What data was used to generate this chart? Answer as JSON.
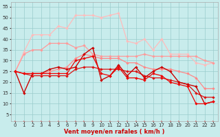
{
  "x": [
    0,
    1,
    2,
    3,
    4,
    5,
    6,
    7,
    8,
    9,
    10,
    11,
    12,
    13,
    14,
    15,
    16,
    17,
    18,
    19,
    20,
    21,
    22,
    23
  ],
  "line_pink_top": [
    25,
    34,
    42,
    42,
    42,
    46,
    45,
    51,
    51,
    51,
    50,
    51,
    52,
    39,
    38,
    40,
    35,
    40,
    33,
    33,
    33,
    29,
    28,
    29
  ],
  "line_pink_mid": [
    25,
    33,
    35,
    35,
    38,
    38,
    38,
    36,
    37,
    33,
    32,
    32,
    32,
    32,
    32,
    33,
    32,
    32,
    32,
    32,
    32,
    32,
    30,
    29
  ],
  "line_salmon": [
    25,
    24,
    24,
    24,
    25,
    26,
    27,
    31,
    33,
    32,
    31,
    31,
    31,
    29,
    29,
    27,
    26,
    26,
    26,
    25,
    24,
    22,
    17,
    17
  ],
  "line_red1": [
    25,
    15,
    24,
    24,
    26,
    27,
    26,
    27,
    33,
    36,
    21,
    23,
    28,
    23,
    27,
    22,
    25,
    27,
    25,
    20,
    19,
    18,
    10,
    11
  ],
  "line_red2": [
    25,
    24,
    24,
    24,
    24,
    24,
    24,
    30,
    31,
    32,
    24,
    23,
    27,
    22,
    22,
    21,
    24,
    23,
    20,
    19,
    18,
    10,
    10,
    11
  ],
  "line_red3": [
    25,
    24,
    23,
    23,
    23,
    23,
    23,
    26,
    27,
    27,
    26,
    26,
    26,
    25,
    25,
    23,
    22,
    22,
    21,
    20,
    19,
    15,
    13,
    13
  ],
  "line_bottom": [
    2,
    2,
    2,
    2,
    2,
    2,
    2,
    2,
    2,
    2,
    2,
    2,
    2,
    2,
    2,
    2,
    2,
    2,
    2,
    2,
    2,
    2,
    2,
    2
  ],
  "background_color": "#c8ecec",
  "grid_color": "#99cccc",
  "xlabel": "Vent moyen/en rafales ( km/h )",
  "ylim": [
    2,
    57
  ],
  "xlim": [
    -0.5,
    23.5
  ],
  "yticks": [
    5,
    10,
    15,
    20,
    25,
    30,
    35,
    40,
    45,
    50,
    55
  ],
  "xticks": [
    0,
    1,
    2,
    3,
    4,
    5,
    6,
    7,
    8,
    9,
    10,
    11,
    12,
    13,
    14,
    15,
    16,
    17,
    18,
    19,
    20,
    21,
    22,
    23
  ]
}
